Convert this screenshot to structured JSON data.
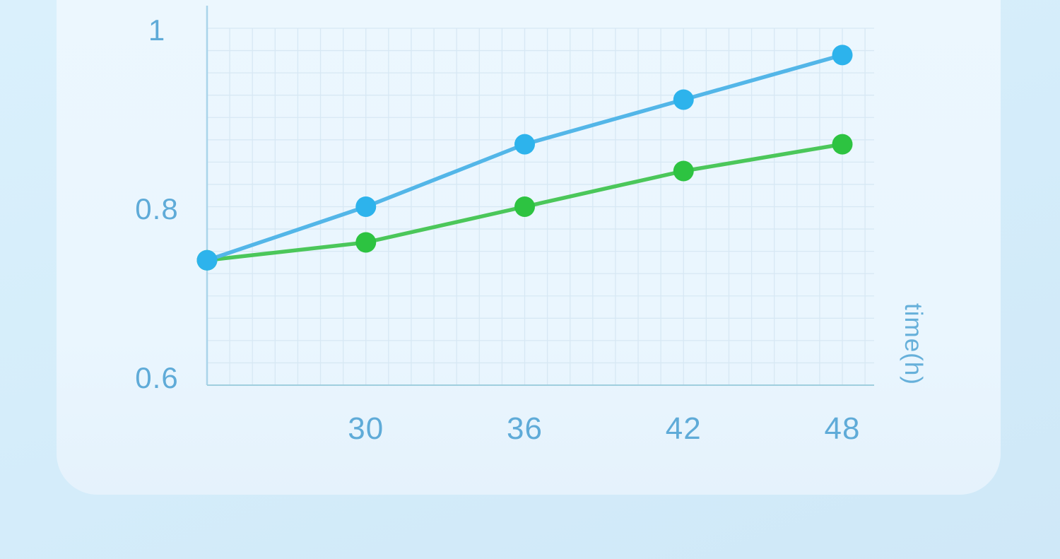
{
  "chart_data": {
    "type": "line",
    "x": [
      24,
      30,
      36,
      42,
      48
    ],
    "series": [
      {
        "name": "green-series",
        "values": [
          0.74,
          0.76,
          0.8,
          0.84,
          0.87
        ],
        "line_color": "#4bc75a",
        "dot_color": "#2dc341"
      },
      {
        "name": "blue-series",
        "values": [
          0.74,
          0.8,
          0.87,
          0.92,
          0.97
        ],
        "line_color": "#53b6e8",
        "dot_color": "#2db3ec"
      }
    ],
    "xtick_labels": [
      "30",
      "36",
      "42",
      "48"
    ],
    "xtick_values": [
      30,
      36,
      42,
      48
    ],
    "ytick_labels": [
      "1",
      "0.8",
      "0.6"
    ],
    "ytick_values": [
      1,
      0.8,
      0.6
    ],
    "xlabel": "time(h)",
    "xlim": [
      24,
      48
    ],
    "ylim": [
      0.6,
      1.0
    ],
    "grid": true,
    "legend_position": "none"
  },
  "colors": {
    "page_bg_top": "#daf0fc",
    "page_bg_bottom": "#cfe8f8",
    "card_bg": "#eaf6fe",
    "grid_line": "#d7e8f4",
    "y_axis_line": "#aad4ea",
    "x_axis_line": "#9fcede",
    "tick_label": "#5fabd8",
    "axis_title": "#66b0da"
  }
}
